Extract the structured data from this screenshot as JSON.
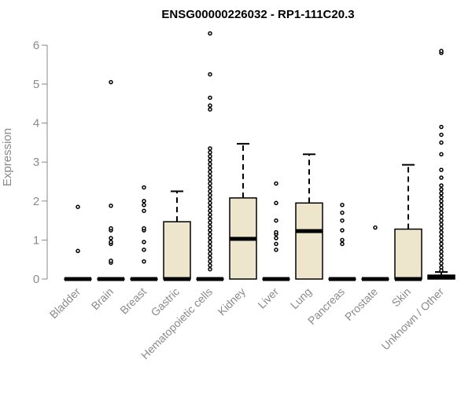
{
  "chart_data": {
    "type": "box",
    "title": "ENSG00000226032 - RP1-111C20.3",
    "ylabel": "Expression",
    "xlabel": "",
    "ylim": [
      0,
      6.3
    ],
    "yticks": [
      0,
      1,
      2,
      3,
      4,
      5,
      6
    ],
    "colors": {
      "box_fill": "#ede6cc",
      "box_stroke": "#000000",
      "axis": "#8a8a8a",
      "title": "#000000"
    },
    "categories": [
      "Bladder",
      "Brain",
      "Breast",
      "Gastric",
      "Hematopoietic cells",
      "Kidney",
      "Liver",
      "Lung",
      "Pancreas",
      "Prostate",
      "Skin",
      "Unknown / Other"
    ],
    "boxes": [
      {
        "q1": 0,
        "median": 0,
        "q3": 0,
        "whisker_low": 0,
        "whisker_high": 0,
        "outliers": [
          0.72,
          1.85
        ]
      },
      {
        "q1": 0,
        "median": 0,
        "q3": 0,
        "whisker_low": 0,
        "whisker_high": 0,
        "outliers": [
          0.42,
          0.47,
          0.9,
          0.95,
          1.05,
          1.25,
          1.3,
          1.88,
          5.05
        ]
      },
      {
        "q1": 0,
        "median": 0,
        "q3": 0,
        "whisker_low": 0,
        "whisker_high": 0,
        "outliers": [
          0.45,
          0.75,
          0.95,
          1.25,
          1.3,
          1.75,
          1.9,
          2.0,
          2.35
        ]
      },
      {
        "q1": 0,
        "median": 0,
        "q3": 1.47,
        "whisker_low": 0,
        "whisker_high": 2.25,
        "outliers": []
      },
      {
        "q1": 0,
        "median": 0,
        "q3": 0,
        "whisker_low": 0,
        "whisker_high": 0,
        "outliers": [
          0.25,
          0.35,
          0.45,
          0.55,
          0.65,
          0.75,
          0.85,
          0.95,
          1.05,
          1.15,
          1.25,
          1.35,
          1.45,
          1.55,
          1.65,
          1.75,
          1.85,
          1.95,
          2.05,
          2.15,
          2.25,
          2.35,
          2.45,
          2.55,
          2.65,
          2.75,
          2.85,
          2.95,
          3.05,
          3.15,
          3.25,
          3.35,
          4.35,
          4.45,
          4.65,
          5.25,
          6.3
        ]
      },
      {
        "q1": 0,
        "median": 1.03,
        "q3": 2.08,
        "whisker_low": 0,
        "whisker_high": 3.47,
        "outliers": []
      },
      {
        "q1": 0,
        "median": 0,
        "q3": 0,
        "whisker_low": 0,
        "whisker_high": 0,
        "outliers": [
          0.75,
          0.9,
          1.05,
          1.15,
          1.2,
          1.5,
          1.95,
          2.45
        ]
      },
      {
        "q1": 0,
        "median": 1.23,
        "q3": 1.95,
        "whisker_low": 0,
        "whisker_high": 3.2,
        "outliers": []
      },
      {
        "q1": 0,
        "median": 0,
        "q3": 0,
        "whisker_low": 0,
        "whisker_high": 0,
        "outliers": [
          0.9,
          1.0,
          1.25,
          1.5,
          1.7,
          1.9
        ]
      },
      {
        "q1": 0,
        "median": 0,
        "q3": 0,
        "whisker_low": 0,
        "whisker_high": 0,
        "outliers": [
          1.32
        ]
      },
      {
        "q1": 0,
        "median": 0,
        "q3": 1.28,
        "whisker_low": 0,
        "whisker_high": 2.93,
        "outliers": []
      },
      {
        "q1": 0,
        "median": 0.05,
        "q3": 0.1,
        "whisker_low": 0,
        "whisker_high": 0.18,
        "outliers": [
          0.22,
          0.3,
          0.4,
          0.5,
          0.6,
          0.7,
          0.8,
          0.9,
          1.0,
          1.1,
          1.2,
          1.3,
          1.4,
          1.5,
          1.6,
          1.7,
          1.8,
          1.9,
          2.0,
          2.1,
          2.2,
          2.3,
          2.4,
          2.6,
          2.8,
          3.2,
          3.5,
          3.7,
          3.9,
          5.8,
          5.85
        ]
      }
    ]
  }
}
